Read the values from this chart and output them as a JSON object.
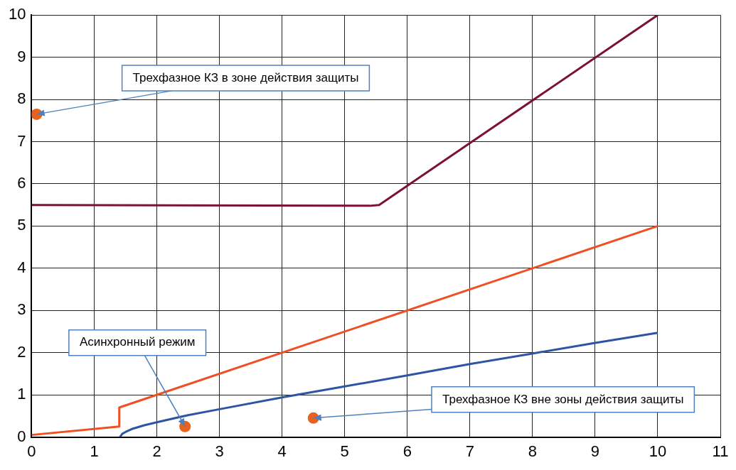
{
  "chart_data": {
    "type": "line",
    "xlim": [
      0,
      11
    ],
    "ylim": [
      0,
      10
    ],
    "xticks": [
      0,
      1,
      2,
      3,
      4,
      5,
      6,
      7,
      8,
      9,
      10,
      11
    ],
    "yticks": [
      0,
      1,
      2,
      3,
      4,
      5,
      6,
      7,
      8,
      9,
      10
    ],
    "grid": true,
    "legend": false,
    "marker": "none",
    "line_style": "solid",
    "series": [
      {
        "color": "#7b1136",
        "x": [
          0,
          5.4,
          5.55,
          10
        ],
        "values": [
          5.5,
          5.48,
          5.5,
          10
        ]
      },
      {
        "color": "#f04e23",
        "x": [
          0,
          1.4,
          1.4,
          10
        ],
        "values": [
          0.05,
          0.25,
          0.7,
          5
        ]
      },
      {
        "color": "#2e55a4",
        "x": [
          1.41,
          1.45,
          1.5,
          1.6,
          1.8,
          2,
          2.5,
          3,
          4,
          5,
          6,
          7,
          8,
          9,
          10
        ],
        "values": [
          0,
          0.08,
          0.12,
          0.19,
          0.28,
          0.35,
          0.52,
          0.66,
          0.94,
          1.2,
          1.46,
          1.73,
          1.98,
          2.23,
          2.47
        ]
      },
      {
        "type": "scatter",
        "marker": "circle",
        "color": "#e8621e",
        "x": [
          0.08,
          2.45,
          4.5
        ],
        "values": [
          7.65,
          0.25,
          0.45
        ]
      }
    ],
    "annotations": [
      {
        "text": "Трехфазное КЗ в зоне действия защиты",
        "x": 0.08,
        "y": 7.65
      },
      {
        "text": "Асинхронный режим",
        "x": 2.45,
        "y": 0.25
      },
      {
        "text": "Трехфазное КЗ вне зоны действия защиты",
        "x": 4.5,
        "y": 0.45
      }
    ]
  }
}
